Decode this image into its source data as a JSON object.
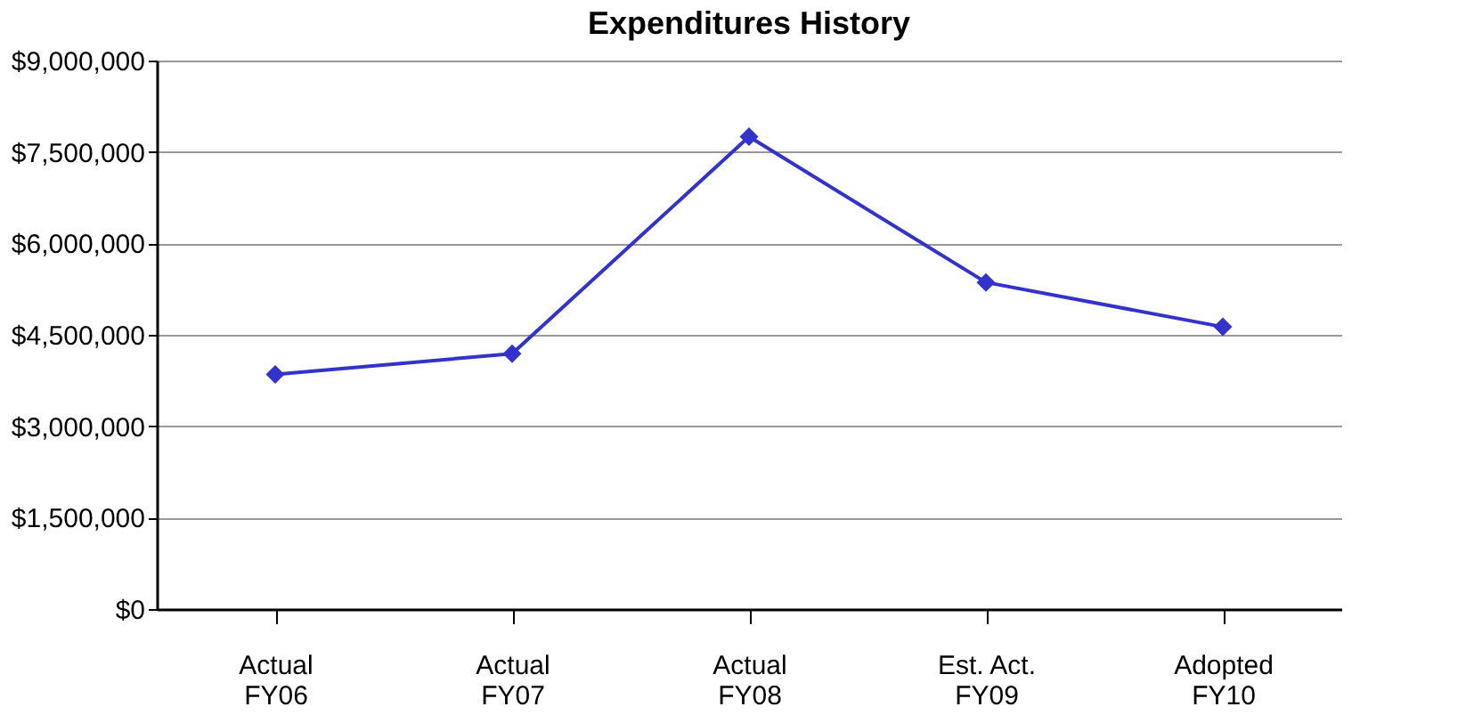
{
  "chart_data": {
    "type": "line",
    "title": "Expenditures History",
    "categories": [
      "Actual FY06",
      "Actual FY07",
      "Actual FY08",
      "Est. Act. FY09",
      "Adopted FY10"
    ],
    "series": [
      {
        "color": "#3333cc",
        "values": [
          3850000,
          4190000,
          7750000,
          5360000,
          4630000
        ]
      }
    ],
    "ylim": [
      0,
      9000000
    ],
    "yticks": [
      {
        "value": 0,
        "label": "$0"
      },
      {
        "value": 1500000,
        "label": "$1,500,000"
      },
      {
        "value": 3000000,
        "label": "$3,000,000"
      },
      {
        "value": 4500000,
        "label": "$4,500,000"
      },
      {
        "value": 6000000,
        "label": "$6,000,000"
      },
      {
        "value": 7500000,
        "label": "$7,500,000"
      },
      {
        "value": 9000000,
        "label": "$9,000,000"
      }
    ],
    "grid": "y",
    "marker": "diamond",
    "line_style": "solid"
  }
}
